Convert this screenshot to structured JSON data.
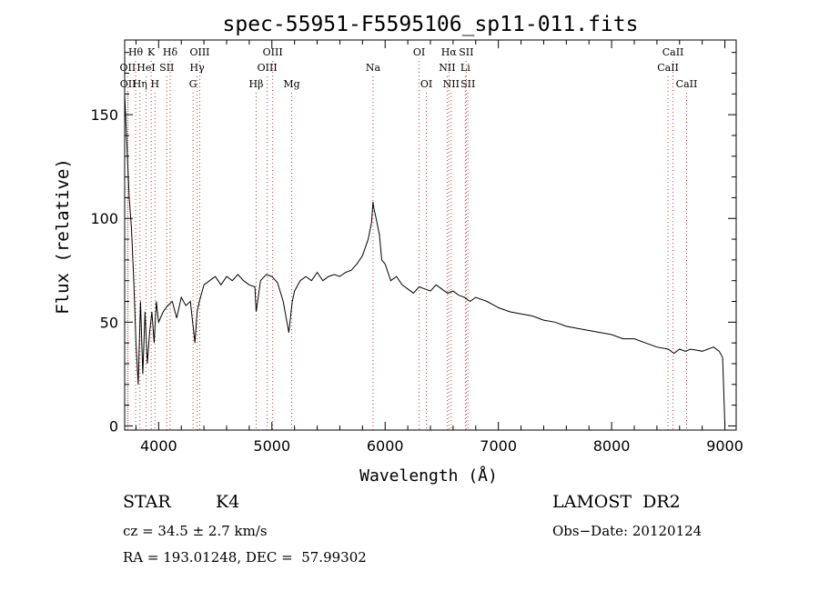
{
  "chart_data": {
    "type": "line",
    "title": "spec-55951-F5595106_sp11-011.fits",
    "xlabel": "Wavelength (Å)",
    "ylabel": "Flux (relative)",
    "xlim": [
      3700,
      9100
    ],
    "ylim": [
      -2,
      186
    ],
    "x_ticks": [
      4000,
      5000,
      6000,
      7000,
      8000,
      9000
    ],
    "x_tick_labels": [
      "4000",
      "5000",
      "6000",
      "7000",
      "8000",
      "9000"
    ],
    "y_ticks": [
      0,
      50,
      100,
      150
    ],
    "y_tick_labels": [
      "0",
      "50",
      "100",
      "150"
    ],
    "grid": false,
    "series": [
      {
        "x": [
          3700,
          3720,
          3740,
          3760,
          3780,
          3800,
          3820,
          3840,
          3860,
          3880,
          3900,
          3920,
          3940,
          3960,
          3980,
          4000,
          4040,
          4080,
          4120,
          4160,
          4200,
          4240,
          4280,
          4300,
          4320,
          4340,
          4360,
          4400,
          4450,
          4500,
          4550,
          4600,
          4650,
          4700,
          4750,
          4800,
          4850,
          4861,
          4900,
          4950,
          5000,
          5050,
          5100,
          5150,
          5170,
          5180,
          5200,
          5250,
          5300,
          5350,
          5400,
          5450,
          5500,
          5550,
          5600,
          5650,
          5700,
          5750,
          5800,
          5850,
          5880,
          5893,
          5900,
          5920,
          5950,
          5970,
          6000,
          6050,
          6100,
          6150,
          6200,
          6250,
          6300,
          6350,
          6400,
          6450,
          6500,
          6550,
          6600,
          6650,
          6700,
          6750,
          6800,
          6900,
          7000,
          7100,
          7200,
          7300,
          7400,
          7500,
          7600,
          7700,
          7800,
          7900,
          8000,
          8100,
          8200,
          8300,
          8400,
          8500,
          8550,
          8600,
          8650,
          8700,
          8800,
          8900,
          8950,
          8980,
          9000
        ],
        "y": [
          160,
          135,
          110,
          95,
          70,
          40,
          20,
          60,
          25,
          55,
          30,
          45,
          55,
          40,
          60,
          50,
          55,
          58,
          60,
          52,
          62,
          58,
          60,
          50,
          40,
          55,
          60,
          68,
          70,
          72,
          68,
          72,
          70,
          73,
          70,
          68,
          67,
          55,
          70,
          73,
          72,
          69,
          60,
          45,
          55,
          60,
          65,
          70,
          72,
          70,
          74,
          70,
          72,
          73,
          72,
          74,
          75,
          78,
          82,
          90,
          98,
          108,
          105,
          100,
          92,
          80,
          78,
          70,
          72,
          68,
          66,
          64,
          67,
          66,
          65,
          68,
          66,
          64,
          65,
          63,
          62,
          60,
          62,
          60,
          57,
          55,
          54,
          53,
          51,
          50,
          48,
          47,
          46,
          45,
          44,
          42,
          42,
          40,
          38,
          37,
          35,
          37,
          36,
          37,
          36,
          38,
          36,
          33,
          0
        ]
      }
    ],
    "lines": [
      {
        "label": "Hθ",
        "x": 3797,
        "row": 1
      },
      {
        "label": "K",
        "x": 3934,
        "row": 1
      },
      {
        "label": "Hδ",
        "x": 4102,
        "row": 1
      },
      {
        "label": "OIII",
        "x": 4363,
        "row": 1
      },
      {
        "label": "OIII",
        "x": 5007,
        "row": 1
      },
      {
        "label": "OI",
        "x": 6300,
        "row": 1
      },
      {
        "label": "Hα",
        "x": 6563,
        "row": 1
      },
      {
        "label": "SII",
        "x": 6716,
        "row": 1
      },
      {
        "label": "CaII",
        "x": 8542,
        "row": 1
      },
      {
        "label": "OII",
        "x": 3727,
        "row": 2
      },
      {
        "label": "HeI",
        "x": 3889,
        "row": 2
      },
      {
        "label": "SII",
        "x": 4072,
        "row": 2
      },
      {
        "label": "Hγ",
        "x": 4340,
        "row": 2
      },
      {
        "label": "OIII",
        "x": 4959,
        "row": 2
      },
      {
        "label": "Na",
        "x": 5893,
        "row": 2
      },
      {
        "label": "NII",
        "x": 6548,
        "row": 2
      },
      {
        "label": "Li",
        "x": 6708,
        "row": 2
      },
      {
        "label": "CaII",
        "x": 8498,
        "row": 2
      },
      {
        "label": "OII",
        "x": 3729,
        "row": 3
      },
      {
        "label": "Hη",
        "x": 3835,
        "row": 3
      },
      {
        "label": "H",
        "x": 3968,
        "row": 3
      },
      {
        "label": "G",
        "x": 4304,
        "row": 3
      },
      {
        "label": "Hβ",
        "x": 4861,
        "row": 3
      },
      {
        "label": "Mg",
        "x": 5175,
        "row": 3
      },
      {
        "label": "OI",
        "x": 6364,
        "row": 3
      },
      {
        "label": "NII",
        "x": 6583,
        "row": 3
      },
      {
        "label": "SII",
        "x": 6731,
        "row": 3
      },
      {
        "label": "CaII",
        "x": 8662,
        "row": 3
      }
    ]
  },
  "info": {
    "object_class": "STAR",
    "subclass": "K4",
    "survey": "LAMOST  DR2",
    "cz": "cz = 34.5 ± 2.7 km/s",
    "obs_date": "Obs−Date: 20120124",
    "coords": "RA = 193.01248, DEC =  57.99302"
  }
}
